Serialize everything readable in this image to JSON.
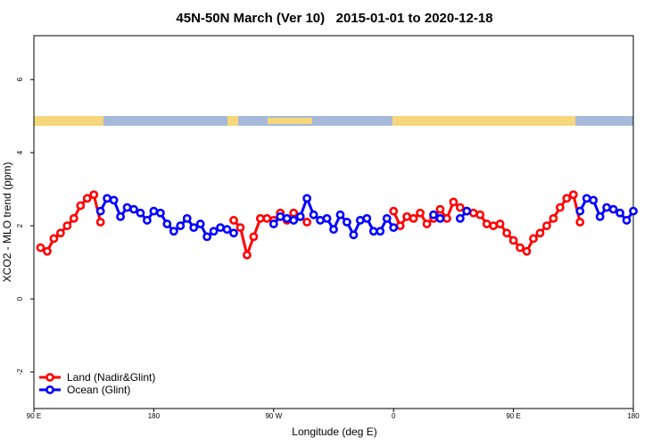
{
  "chart_data": {
    "type": "line",
    "title": "45N-50N March (Ver 10)   2015-01-01 to 2020-12-18",
    "x_label": "Longitude (deg E)",
    "y_label": "XCO2 - MLO trend (ppm)",
    "x": [
      95,
      100,
      105,
      110,
      115,
      120,
      125,
      130,
      135,
      140,
      145,
      150,
      155,
      160,
      165,
      170,
      175,
      180,
      185,
      190,
      195,
      200,
      205,
      210,
      215,
      220,
      225,
      230,
      235,
      240,
      245,
      250,
      255,
      260,
      265,
      270,
      275,
      280,
      285,
      290,
      295,
      300,
      305,
      310,
      315,
      320,
      325,
      330,
      335,
      340,
      345,
      350,
      355,
      360,
      365,
      370,
      375,
      380,
      385,
      390,
      395,
      400,
      405,
      410,
      415,
      420,
      425,
      430,
      435,
      440,
      445,
      450,
      455,
      460,
      465,
      470,
      475,
      480,
      485,
      490,
      495,
      500,
      505,
      510,
      515,
      520,
      525,
      530,
      535,
      540
    ],
    "series": [
      {
        "name": "Land (Nadir&Glint)",
        "color": "#ff0000",
        "values": [
          1.4,
          1.3,
          1.65,
          1.8,
          2.0,
          2.2,
          2.55,
          2.75,
          2.85,
          2.1,
          null,
          null,
          null,
          null,
          null,
          null,
          null,
          null,
          null,
          null,
          null,
          null,
          null,
          null,
          null,
          null,
          null,
          null,
          null,
          2.15,
          1.95,
          1.2,
          1.7,
          2.2,
          2.2,
          2.15,
          2.35,
          2.15,
          2.35,
          2.25,
          2.1,
          null,
          null,
          null,
          null,
          null,
          null,
          null,
          null,
          null,
          null,
          null,
          null,
          2.4,
          2.0,
          2.25,
          2.2,
          2.35,
          2.05,
          2.2,
          2.45,
          2.2,
          2.65,
          2.5,
          2.4,
          2.35,
          2.3,
          2.05,
          2.0,
          2.05,
          1.8,
          1.6,
          1.4,
          1.3,
          1.65,
          1.8,
          2.0,
          2.2,
          2.5,
          2.75,
          2.85,
          2.1,
          null,
          null,
          null,
          null,
          null,
          null,
          null,
          null
        ]
      },
      {
        "name": "Ocean (Glint)",
        "color": "#0000ff",
        "values": [
          null,
          null,
          null,
          null,
          null,
          null,
          null,
          null,
          null,
          2.4,
          2.75,
          2.7,
          2.25,
          2.5,
          2.45,
          2.35,
          2.15,
          2.4,
          2.35,
          2.05,
          1.85,
          2.0,
          2.2,
          1.95,
          2.05,
          1.7,
          1.85,
          1.95,
          1.9,
          1.8,
          null,
          null,
          null,
          null,
          null,
          2.05,
          2.25,
          2.2,
          2.15,
          2.25,
          2.75,
          2.3,
          2.15,
          2.2,
          1.9,
          2.3,
          2.1,
          1.75,
          2.15,
          2.2,
          1.85,
          1.85,
          2.2,
          1.95,
          null,
          null,
          null,
          null,
          null,
          2.3,
          2.2,
          null,
          null,
          2.2,
          2.4,
          null,
          null,
          null,
          null,
          null,
          null,
          null,
          null,
          null,
          null,
          null,
          null,
          null,
          null,
          null,
          null,
          2.4,
          2.75,
          2.7,
          2.25,
          2.5,
          2.45,
          2.35,
          2.15,
          2.4
        ]
      }
    ],
    "xlim": [
      90,
      540
    ],
    "xticks": [
      {
        "value": 90,
        "label": "90 E"
      },
      {
        "value": 180,
        "label": "180"
      },
      {
        "value": 270,
        "label": "90 W"
      },
      {
        "value": 360,
        "label": "0"
      },
      {
        "value": 450,
        "label": "90 E"
      },
      {
        "value": 540,
        "label": "180"
      }
    ],
    "ylim": [
      -3,
      7.2
    ],
    "yticks": [
      -2,
      0,
      2,
      4,
      6
    ],
    "legend": "bottom-left"
  }
}
